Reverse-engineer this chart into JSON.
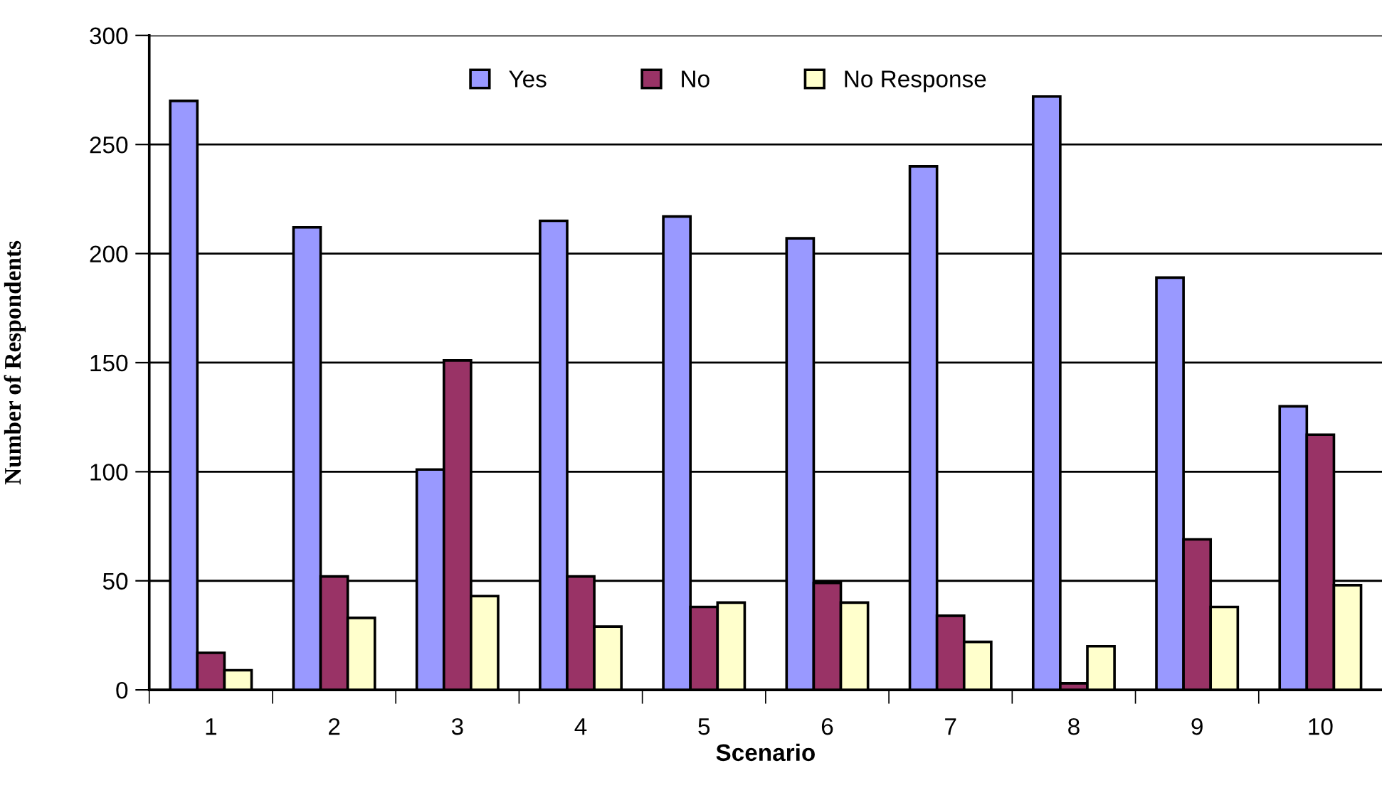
{
  "chart_data": {
    "type": "bar",
    "xlabel": "Scenario",
    "ylabel": "Number of Respondents",
    "categories": [
      "1",
      "2",
      "3",
      "4",
      "5",
      "6",
      "7",
      "8",
      "9",
      "10"
    ],
    "series": [
      {
        "name": "Yes",
        "color": "#9999ff",
        "values": [
          270,
          212,
          101,
          215,
          217,
          207,
          240,
          272,
          189,
          130
        ]
      },
      {
        "name": "No",
        "color": "#993366",
        "values": [
          17,
          52,
          151,
          52,
          38,
          49,
          34,
          3,
          69,
          117
        ]
      },
      {
        "name": "No Response",
        "color": "#ffffcc",
        "values": [
          9,
          33,
          43,
          29,
          40,
          40,
          22,
          20,
          38,
          48
        ]
      }
    ],
    "ylim": [
      0,
      300
    ],
    "yticks": [
      0,
      50,
      100,
      150,
      200,
      250,
      300
    ],
    "grid": "y",
    "legend": "top"
  }
}
